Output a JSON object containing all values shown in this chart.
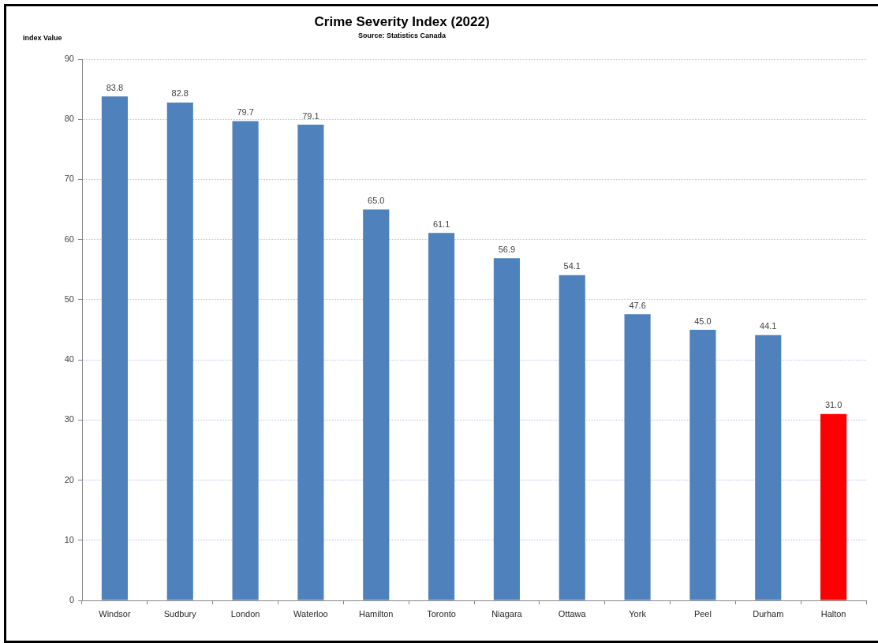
{
  "chart_data": {
    "type": "bar",
    "title": "Crime Severity Index (2022)",
    "annotations": [
      "Source: Statistics Canada"
    ],
    "ylabel": "Index Value",
    "categories": [
      "Windsor",
      "Sudbury",
      "London",
      "Waterloo",
      "Hamilton",
      "Toronto",
      "Niagara",
      "Ottawa",
      "York",
      "Peel",
      "Durham",
      "Halton"
    ],
    "values": [
      83.8,
      82.8,
      79.7,
      79.1,
      65.0,
      61.1,
      56.9,
      54.1,
      47.6,
      45.0,
      44.1,
      31.0
    ],
    "value_labels": [
      "83.8",
      "82.8",
      "79.7",
      "79.1",
      "65.0",
      "61.1",
      "56.9",
      "54.1",
      "47.6",
      "45.0",
      "44.1",
      "31.0"
    ],
    "colors": [
      "#4f81bd",
      "#4f81bd",
      "#4f81bd",
      "#4f81bd",
      "#4f81bd",
      "#4f81bd",
      "#4f81bd",
      "#4f81bd",
      "#4f81bd",
      "#4f81bd",
      "#4f81bd",
      "#ff0000"
    ],
    "ylim": [
      0,
      90
    ],
    "yticks": [
      0,
      10,
      20,
      30,
      40,
      50,
      60,
      70,
      80,
      90
    ],
    "grid": "y"
  }
}
